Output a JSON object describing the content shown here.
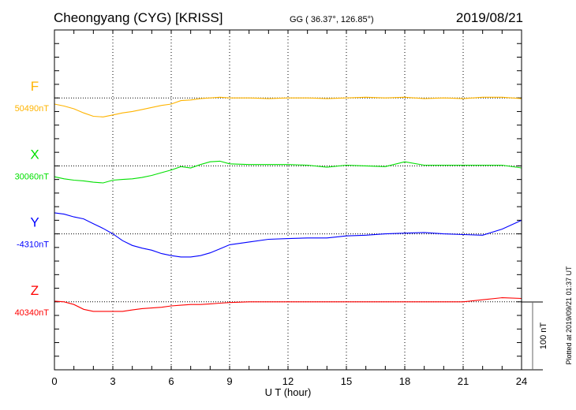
{
  "header": {
    "station": "Cheongyang (CYG)  [KRISS]",
    "coords": "GG ( 36.37°, 126.85°)",
    "date": "2019/08/21"
  },
  "footer": {
    "plotted": "Plotted at 2019/09/21 01:37 UT",
    "scale_label": "100 nT"
  },
  "chart_data": {
    "type": "line",
    "title": "Cheongyang (CYG)  [KRISS]",
    "xlabel": "U T (hour)",
    "ylabel": "",
    "xlim": [
      0,
      24
    ],
    "xticks": [
      "0",
      "3",
      "6",
      "9",
      "12",
      "15",
      "18",
      "21",
      "24"
    ],
    "row_spacing_nT": 100,
    "grid": true,
    "series": [
      {
        "name": "F",
        "baseline_label": "50490nT",
        "color": "#ffb400",
        "x": [
          0,
          0.5,
          1,
          1.5,
          2,
          2.5,
          3,
          3.5,
          4,
          4.5,
          5,
          5.5,
          6,
          6.5,
          7,
          7.5,
          8,
          8.5,
          9,
          10,
          11,
          12,
          13,
          14,
          15,
          16,
          17,
          18,
          19,
          20,
          21,
          22,
          23,
          24
        ],
        "values": [
          -9,
          -12,
          -16,
          -22,
          -27,
          -28,
          -25,
          -22,
          -20,
          -17,
          -14,
          -11,
          -9,
          -4,
          -3,
          -1,
          0,
          1,
          0,
          0,
          -1,
          0,
          0,
          -1,
          0,
          1,
          0,
          1,
          -1,
          0,
          -1,
          1,
          1,
          -1
        ]
      },
      {
        "name": "X",
        "baseline_label": "30060nT",
        "color": "#00e000",
        "x": [
          0,
          0.5,
          1,
          1.5,
          2,
          2.5,
          3,
          3.5,
          4,
          4.5,
          5,
          5.5,
          6,
          6.5,
          7,
          7.5,
          8,
          8.5,
          9,
          10,
          11,
          12,
          13,
          14,
          15,
          16,
          17,
          18,
          19,
          20,
          21,
          22,
          23,
          24
        ],
        "values": [
          -16,
          -19,
          -21,
          -22,
          -24,
          -25,
          -21,
          -20,
          -19,
          -17,
          -14,
          -10,
          -6,
          -1,
          -3,
          2,
          6,
          7,
          3,
          2,
          2,
          2,
          1,
          -2,
          1,
          0,
          -1,
          6,
          1,
          1,
          1,
          1,
          1,
          -3
        ]
      },
      {
        "name": "Y",
        "baseline_label": "-4310nT",
        "color": "#0000ff",
        "x": [
          0,
          0.5,
          1,
          1.5,
          2,
          2.5,
          3,
          3.5,
          4,
          4.5,
          5,
          5.5,
          6,
          6.5,
          7,
          7.5,
          8,
          8.5,
          9,
          10,
          11,
          12,
          13,
          14,
          15,
          16,
          17,
          18,
          19,
          20,
          21,
          22,
          23,
          24
        ],
        "values": [
          31,
          29,
          25,
          22,
          15,
          8,
          0,
          -10,
          -17,
          -21,
          -24,
          -29,
          -32,
          -34,
          -34,
          -32,
          -28,
          -22,
          -16,
          -12,
          -8,
          -7,
          -6,
          -6,
          -3,
          -2,
          0,
          1,
          2,
          0,
          -1,
          -2,
          7,
          20
        ]
      },
      {
        "name": "Z",
        "baseline_label": "40340nT",
        "color": "#ff0000",
        "x": [
          0,
          0.5,
          1,
          1.5,
          2,
          2.5,
          3,
          3.5,
          4,
          4.5,
          5,
          5.5,
          6,
          6.5,
          7,
          7.5,
          8,
          8.5,
          9,
          10,
          11,
          12,
          13,
          14,
          15,
          16,
          17,
          18,
          19,
          20,
          21,
          22,
          23,
          24
        ],
        "values": [
          1,
          0,
          -4,
          -11,
          -14,
          -14,
          -14,
          -14,
          -12,
          -10,
          -9,
          -8,
          -6,
          -5,
          -4,
          -4,
          -3,
          -2,
          -1,
          0,
          0,
          0,
          0,
          0,
          0,
          0,
          0,
          0,
          0,
          0,
          0,
          3,
          6,
          5
        ]
      }
    ]
  }
}
